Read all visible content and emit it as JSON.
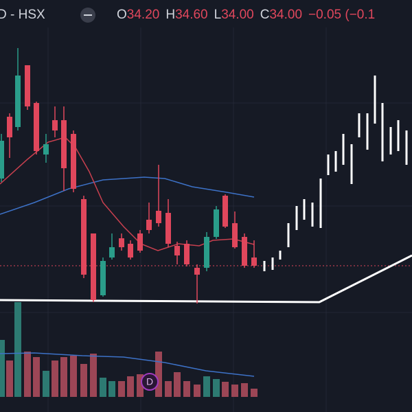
{
  "header": {
    "symbol": "D - HSX",
    "ohlc": [
      {
        "key": "O",
        "value": "34.20"
      },
      {
        "key": "H",
        "value": "34.60"
      },
      {
        "key": "L",
        "value": "34.00"
      },
      {
        "key": "C",
        "value": "34.00"
      }
    ],
    "change": "−0.05 (−0.1"
  },
  "marker": "D"
}
